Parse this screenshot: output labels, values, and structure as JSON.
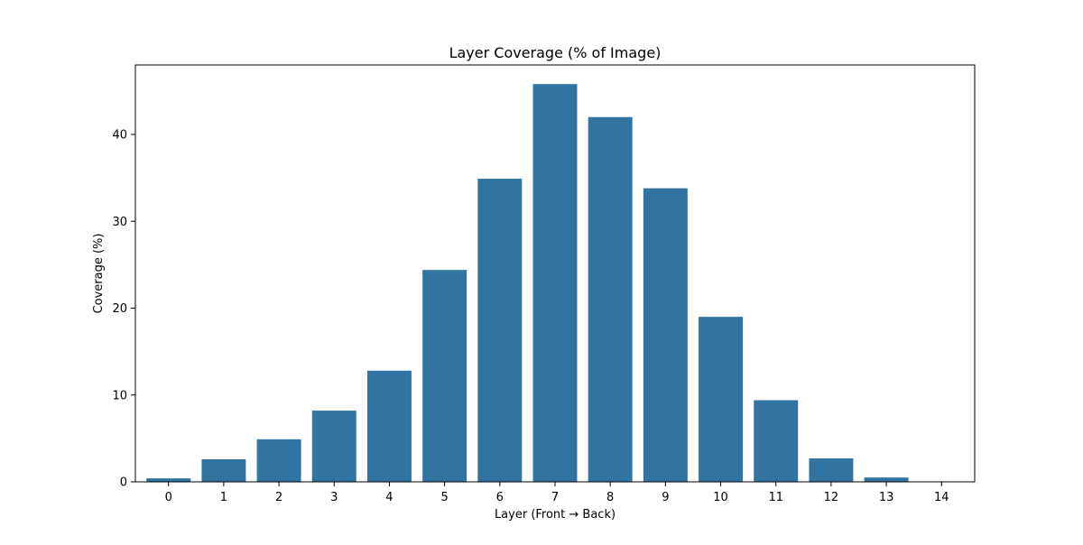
{
  "chart_data": {
    "type": "bar",
    "title": "Layer Coverage (% of Image)",
    "xlabel": "Layer (Front → Back)",
    "ylabel": "Coverage (%)",
    "categories": [
      "0",
      "1",
      "2",
      "3",
      "4",
      "5",
      "6",
      "7",
      "8",
      "9",
      "10",
      "11",
      "12",
      "13",
      "14"
    ],
    "values": [
      0.4,
      2.6,
      4.9,
      8.2,
      12.8,
      24.4,
      34.9,
      45.8,
      42.0,
      33.8,
      19.0,
      9.4,
      2.7,
      0.5,
      0.0
    ],
    "ylim": [
      0,
      48
    ],
    "yticks": [
      0,
      10,
      20,
      30,
      40
    ],
    "grid": false,
    "bar_color": "#3274a1"
  }
}
